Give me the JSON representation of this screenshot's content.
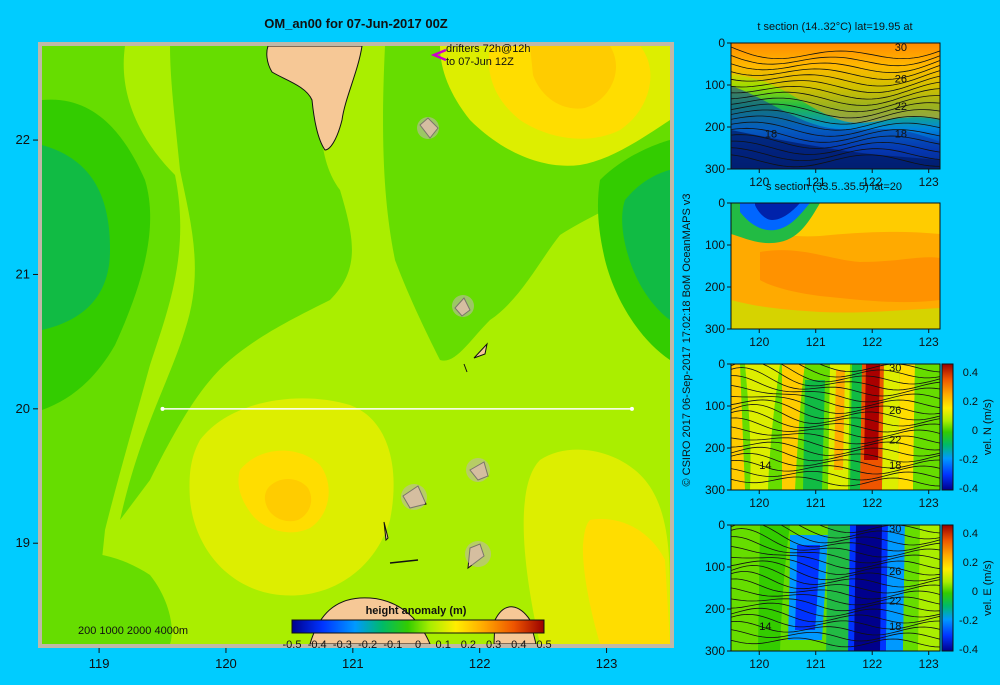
{
  "colors": {
    "background": "#00ccff",
    "frame": "#c0b8a8",
    "land": "#f6c896",
    "track": "#ffffff",
    "drifter": "#cc00cc"
  },
  "chart_data": [
    {
      "type": "heatmap",
      "name": "map",
      "title": "OM_an00 for 07-Jun-2017 00Z",
      "annotation_lines": [
        "drifters 72h@12h",
        "to 07-Jun 12Z"
      ],
      "x_ticks": [
        119,
        120,
        121,
        122,
        123
      ],
      "y_ticks": [
        19,
        20,
        21,
        22
      ],
      "xlim": [
        118.55,
        123.5
      ],
      "ylim": [
        18.25,
        22.7
      ],
      "bathymetry_text": "200  1000  2000  4000m",
      "section_line": {
        "lat": 20,
        "lon_start": 119.5,
        "lon_end": 123.2
      },
      "colorbar": {
        "label": "height anomaly (m)",
        "ticks": [
          "-0.5",
          "-0.4",
          "-0.3",
          "-0.2",
          "-0.1",
          "0",
          "0.1",
          "0.2",
          "0.3",
          "0.4",
          "0.5"
        ],
        "range": [
          -0.5,
          0.5
        ]
      }
    },
    {
      "type": "heatmap",
      "name": "t-section",
      "title": "t section (14..32°C) lat=19.95 at",
      "x_ticks": [
        120,
        121,
        122,
        123
      ],
      "y_ticks": [
        0,
        100,
        200,
        300
      ],
      "xlim": [
        119.5,
        123.2
      ],
      "ylim": [
        300,
        0
      ],
      "contour_labels": [
        {
          "text": "30",
          "lon": 122.4,
          "depth": 10
        },
        {
          "text": "26",
          "lon": 122.4,
          "depth": 85
        },
        {
          "text": "22",
          "lon": 122.4,
          "depth": 150
        },
        {
          "text": "18",
          "lon": 122.4,
          "depth": 215
        },
        {
          "text": "18",
          "lon": 120.1,
          "depth": 215
        }
      ]
    },
    {
      "type": "heatmap",
      "name": "s-section",
      "title": "s section (33.5..35.5) lat=20",
      "x_ticks": [
        120,
        121,
        122,
        123
      ],
      "y_ticks": [
        0,
        100,
        200,
        300
      ],
      "xlim": [
        119.5,
        123.2
      ],
      "ylim": [
        300,
        0
      ]
    },
    {
      "type": "heatmap",
      "name": "vn-section",
      "title": "",
      "x_ticks": [
        120,
        121,
        122,
        123
      ],
      "y_ticks": [
        0,
        100,
        200,
        300
      ],
      "xlim": [
        119.5,
        123.2
      ],
      "ylim": [
        300,
        0
      ],
      "colorbar": {
        "label": "vel. N (m/s)",
        "ticks": [
          "0.4",
          "0.2",
          "0",
          "-0.2",
          "-0.4"
        ],
        "range": [
          -0.4,
          0.4
        ]
      },
      "contour_labels": [
        {
          "text": "30",
          "lon": 122.3,
          "depth": 8
        },
        {
          "text": "26",
          "lon": 122.3,
          "depth": 110
        },
        {
          "text": "22",
          "lon": 122.3,
          "depth": 180
        },
        {
          "text": "18",
          "lon": 122.3,
          "depth": 240
        },
        {
          "text": "14",
          "lon": 120.0,
          "depth": 240
        }
      ]
    },
    {
      "type": "heatmap",
      "name": "ve-section",
      "title": "",
      "x_ticks": [
        120,
        121,
        122,
        123
      ],
      "y_ticks": [
        0,
        100,
        200,
        300
      ],
      "xlim": [
        119.5,
        123.2
      ],
      "ylim": [
        300,
        0
      ],
      "colorbar": {
        "label": "vel. E (m/s)",
        "ticks": [
          "0.4",
          "0.2",
          "0",
          "-0.2",
          "-0.4"
        ],
        "range": [
          -0.4,
          0.4
        ]
      },
      "contour_labels": [
        {
          "text": "30",
          "lon": 122.3,
          "depth": 8
        },
        {
          "text": "26",
          "lon": 122.3,
          "depth": 110
        },
        {
          "text": "22",
          "lon": 122.3,
          "depth": 180
        },
        {
          "text": "18",
          "lon": 122.3,
          "depth": 240
        },
        {
          "text": "14",
          "lon": 120.0,
          "depth": 240
        }
      ]
    }
  ],
  "credit": "© CSIRO 2017   06-Sep-2017 17:02:18 BoM OceanMAPS v3"
}
